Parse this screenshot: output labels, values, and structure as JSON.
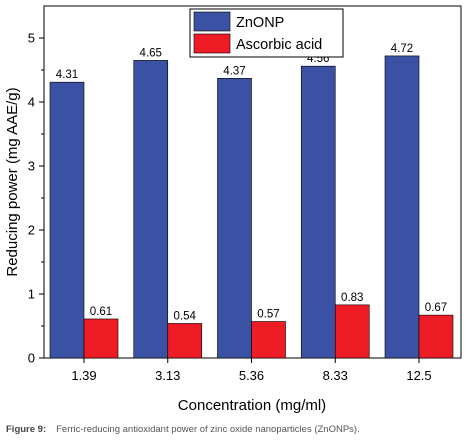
{
  "chart_data": {
    "type": "bar",
    "categories": [
      "1.39",
      "3.13",
      "5.36",
      "8.33",
      "12.5"
    ],
    "series": [
      {
        "name": "ZnONP",
        "values": [
          4.31,
          4.65,
          4.37,
          4.56,
          4.72
        ],
        "color": "#3b52a4"
      },
      {
        "name": "Ascorbic acid",
        "values": [
          0.61,
          0.54,
          0.57,
          0.83,
          0.67
        ],
        "color": "#ee1c25"
      }
    ],
    "xlabel": "Concentration (mg/ml)",
    "ylabel": "Reducing power (mg AAE/g)",
    "ylim": [
      0,
      5.5
    ],
    "yticks": [
      0,
      1,
      2,
      3,
      4,
      5
    ],
    "grid": false,
    "legend": "top-right"
  },
  "caption": {
    "label": "Figure 9:",
    "text": "Ferric-reducing antioxidant power of zinc oxide nanoparticles (ZnONPs)."
  }
}
